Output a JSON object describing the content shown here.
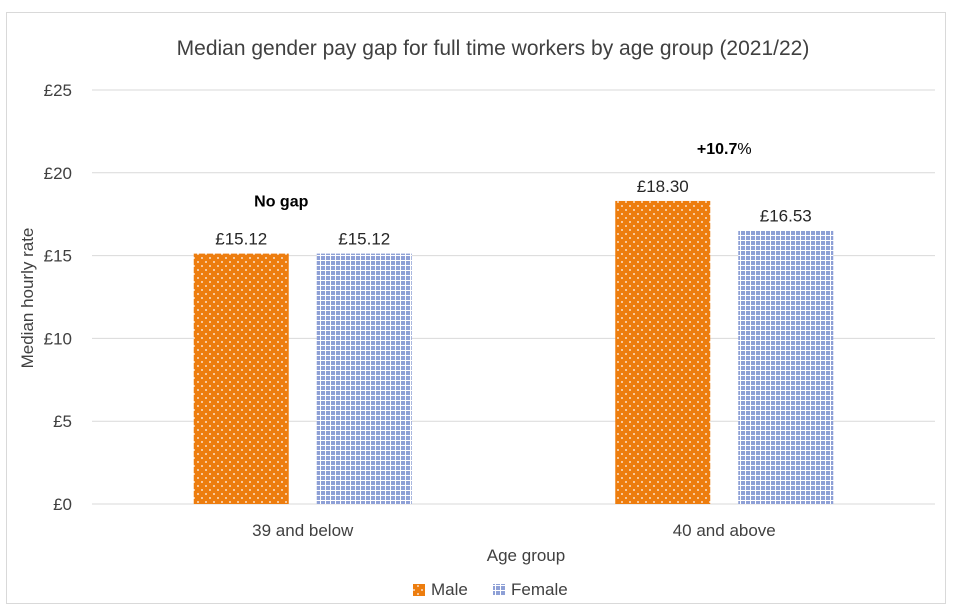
{
  "chart_data": {
    "type": "bar",
    "title": "Median gender pay gap for full time workers by age group (2021/22)",
    "xlabel": "Age group",
    "ylabel": "Median hourly rate",
    "categories": [
      "39 and below",
      "40 and above"
    ],
    "series": [
      {
        "name": "Male",
        "values": [
          15.12,
          18.3
        ],
        "labels": [
          "£15.12",
          "£18.30"
        ],
        "color": "#ED7D0E"
      },
      {
        "name": "Female",
        "values": [
          15.12,
          16.53
        ],
        "labels": [
          "£15.12",
          "£16.53"
        ],
        "color": "#8EA0D6"
      }
    ],
    "ylim": [
      0,
      25
    ],
    "yticks": [
      0,
      5,
      10,
      15,
      20,
      25
    ],
    "ytick_labels": [
      "£0",
      "£5",
      "£10",
      "£15",
      "£20",
      "£25"
    ],
    "grid": true,
    "legend_position": "bottom",
    "annotations": [
      {
        "category": "39 and below",
        "bold": "No gap",
        "rest": ""
      },
      {
        "category": "40 and above",
        "bold": "+10.7",
        "rest": "%"
      }
    ]
  }
}
